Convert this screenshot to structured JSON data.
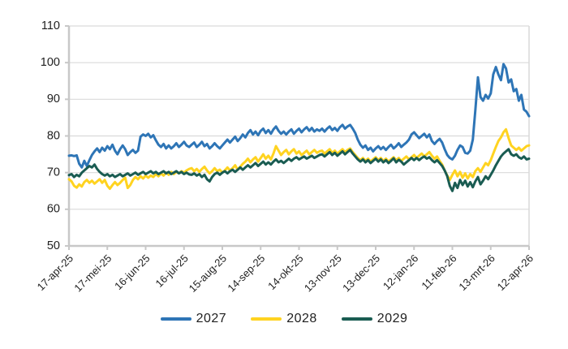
{
  "chart_data": {
    "type": "line",
    "title": "",
    "xlabel": "",
    "ylabel": "",
    "grid": true,
    "legend_position": "bottom",
    "ylim": [
      50,
      110
    ],
    "y_ticks": [
      50,
      60,
      70,
      80,
      90,
      100,
      110
    ],
    "x_range_days": [
      0,
      360
    ],
    "x_tick_positions_days": [
      0,
      30,
      60,
      90,
      120,
      150,
      180,
      210,
      240,
      270,
      300,
      330,
      360
    ],
    "x_tick_labels": [
      "17-apr-25",
      "17-mei-25",
      "16-jun-25",
      "16-jul-25",
      "15-aug-25",
      "14-sep-25",
      "14-okt-25",
      "13-nov-25",
      "13-dec-25",
      "12-jan-26",
      "11-feb-26",
      "13-mrt-26",
      "12-apr-26"
    ],
    "x_step_days": 2,
    "colors": {
      "gridline": "#dadada",
      "axis": "#c8c8c8",
      "tick_text": "#1f1f1f"
    },
    "series": [
      {
        "name": "2027",
        "color": "#2E75B6",
        "values": [
          74.6,
          74.7,
          74.5,
          74.7,
          72.4,
          71.4,
          73.2,
          71.8,
          73.4,
          74.8,
          75.8,
          76.6,
          75.6,
          76.8,
          76.0,
          77.2,
          76.4,
          77.6,
          76.0,
          75.0,
          76.4,
          77.4,
          76.4,
          74.8,
          75.6,
          76.2,
          75.4,
          76.0,
          79.8,
          80.4,
          80.0,
          80.6,
          79.6,
          80.2,
          78.8,
          77.6,
          77.0,
          77.8,
          76.6,
          77.4,
          76.6,
          77.2,
          78.0,
          77.0,
          77.6,
          78.4,
          77.4,
          77.0,
          77.6,
          78.2,
          77.0,
          77.6,
          78.4,
          77.2,
          77.8,
          76.6,
          77.2,
          78.0,
          77.2,
          76.6,
          77.4,
          78.2,
          79.0,
          78.2,
          79.0,
          79.8,
          78.6,
          79.4,
          80.4,
          79.6,
          80.8,
          81.6,
          80.4,
          81.2,
          80.2,
          81.4,
          82.0,
          80.8,
          81.6,
          80.6,
          81.8,
          82.6,
          81.4,
          80.6,
          81.2,
          80.4,
          81.2,
          81.8,
          80.6,
          81.4,
          82.0,
          81.0,
          81.8,
          82.4,
          81.4,
          82.2,
          81.2,
          81.8,
          81.4,
          82.0,
          81.2,
          82.0,
          82.6,
          81.6,
          82.2,
          81.4,
          82.4,
          83.0,
          82.0,
          82.6,
          83.0,
          82.0,
          80.8,
          79.0,
          77.6,
          76.8,
          77.4,
          76.2,
          76.8,
          75.8,
          76.6,
          77.2,
          76.4,
          77.0,
          76.2,
          77.0,
          77.6,
          76.6,
          77.2,
          78.0,
          77.0,
          77.6,
          78.2,
          79.0,
          80.4,
          81.0,
          80.2,
          79.4,
          80.0,
          80.6,
          79.6,
          80.4,
          78.6,
          77.8,
          78.6,
          79.2,
          78.2,
          76.4,
          74.8,
          74.0,
          73.6,
          74.6,
          76.2,
          77.4,
          77.0,
          75.4,
          75.2,
          76.0,
          79.0,
          87.0,
          96.0,
          90.6,
          89.6,
          91.2,
          90.2,
          91.6,
          96.8,
          98.8,
          96.8,
          95.2,
          99.6,
          98.4,
          94.6,
          95.4,
          92.2,
          92.8,
          89.6,
          91.2,
          87.2,
          86.6,
          85.4
        ]
      },
      {
        "name": "2028",
        "color": "#FFD320",
        "values": [
          68.2,
          67.6,
          66.4,
          65.9,
          66.8,
          66.2,
          67.4,
          68.0,
          67.2,
          67.8,
          67.0,
          67.6,
          68.2,
          67.2,
          68.0,
          66.4,
          65.6,
          66.6,
          67.4,
          66.6,
          67.2,
          68.0,
          68.6,
          65.8,
          66.6,
          68.0,
          68.8,
          68.2,
          69.0,
          68.4,
          69.2,
          68.6,
          69.2,
          68.8,
          69.6,
          69.0,
          69.8,
          69.2,
          70.0,
          69.4,
          70.2,
          69.6,
          70.2,
          69.8,
          70.4,
          70.0,
          70.6,
          71.0,
          71.2,
          70.4,
          71.0,
          70.2,
          71.0,
          71.6,
          70.6,
          69.8,
          70.4,
          71.2,
          70.4,
          70.8,
          70.0,
          70.6,
          71.4,
          70.6,
          71.2,
          72.0,
          70.8,
          71.6,
          72.4,
          73.0,
          73.8,
          72.8,
          73.6,
          74.2,
          73.0,
          74.0,
          75.0,
          73.8,
          74.6,
          73.6,
          75.2,
          77.2,
          76.0,
          74.8,
          75.6,
          76.2,
          75.0,
          75.8,
          76.4,
          75.2,
          75.8,
          74.8,
          75.4,
          76.0,
          75.0,
          75.6,
          76.2,
          75.4,
          75.8,
          76.0,
          75.2,
          75.8,
          76.4,
          75.4,
          76.0,
          75.2,
          75.8,
          76.4,
          75.6,
          76.2,
          76.6,
          75.6,
          74.8,
          74.0,
          73.4,
          74.0,
          73.2,
          73.8,
          73.0,
          73.6,
          74.2,
          73.4,
          74.0,
          73.2,
          73.8,
          73.0,
          73.6,
          74.2,
          73.4,
          74.0,
          73.2,
          73.8,
          74.4,
          73.6,
          74.2,
          74.8,
          74.0,
          74.6,
          75.2,
          74.4,
          75.0,
          75.6,
          74.6,
          73.8,
          74.4,
          73.2,
          72.2,
          70.6,
          69.2,
          68.0,
          69.4,
          70.6,
          69.0,
          70.2,
          68.6,
          69.8,
          68.4,
          69.6,
          68.8,
          70.4,
          71.2,
          70.2,
          71.4,
          72.6,
          72.0,
          73.4,
          75.2,
          77.0,
          78.6,
          79.6,
          81.0,
          81.8,
          79.4,
          77.4,
          76.8,
          76.2,
          76.8,
          76.0,
          76.6,
          77.2,
          77.4
        ]
      },
      {
        "name": "2029",
        "color": "#1A5C52",
        "values": [
          69.3,
          69.6,
          68.8,
          69.4,
          69.0,
          70.0,
          70.6,
          71.2,
          71.8,
          71.4,
          72.2,
          71.0,
          70.2,
          69.6,
          69.2,
          69.6,
          69.0,
          69.4,
          68.8,
          69.2,
          69.6,
          69.0,
          69.4,
          69.8,
          69.2,
          69.6,
          70.0,
          69.4,
          69.8,
          70.2,
          69.6,
          70.0,
          70.4,
          69.8,
          70.2,
          69.6,
          70.0,
          70.4,
          69.8,
          70.2,
          69.6,
          70.0,
          70.4,
          69.8,
          70.2,
          69.6,
          70.0,
          69.5,
          69.4,
          69.8,
          69.2,
          69.6,
          68.8,
          69.4,
          68.2,
          67.6,
          68.8,
          69.6,
          70.0,
          69.4,
          70.0,
          70.4,
          69.8,
          70.4,
          70.8,
          70.2,
          70.8,
          71.4,
          70.8,
          71.4,
          72.0,
          71.4,
          72.0,
          72.6,
          71.8,
          72.4,
          73.0,
          72.2,
          72.8,
          72.2,
          73.0,
          73.6,
          72.8,
          73.2,
          72.6,
          73.2,
          73.8,
          73.2,
          73.8,
          74.2,
          73.6,
          74.0,
          74.4,
          73.8,
          74.2,
          74.6,
          74.0,
          74.4,
          74.8,
          75.0,
          74.4,
          75.0,
          75.6,
          74.8,
          75.4,
          74.6,
          75.2,
          75.8,
          75.0,
          75.6,
          76.2,
          75.2,
          74.4,
          73.6,
          73.0,
          73.6,
          72.8,
          73.4,
          72.6,
          73.2,
          73.8,
          73.0,
          73.6,
          72.8,
          73.4,
          72.6,
          73.2,
          73.9,
          72.8,
          73.5,
          73.0,
          72.2,
          72.8,
          73.4,
          74.0,
          73.4,
          74.0,
          73.4,
          74.0,
          74.4,
          73.8,
          74.2,
          73.4,
          72.8,
          73.4,
          72.6,
          71.8,
          70.6,
          69.0,
          66.4,
          65.0,
          67.2,
          65.8,
          68.0,
          66.6,
          67.8,
          66.2,
          67.4,
          66.0,
          67.6,
          68.8,
          66.8,
          67.8,
          69.0,
          68.2,
          69.4,
          70.6,
          72.0,
          73.2,
          74.4,
          75.2,
          75.8,
          76.4,
          75.0,
          74.6,
          75.0,
          74.2,
          73.8,
          74.4,
          73.6,
          73.8
        ]
      }
    ]
  }
}
